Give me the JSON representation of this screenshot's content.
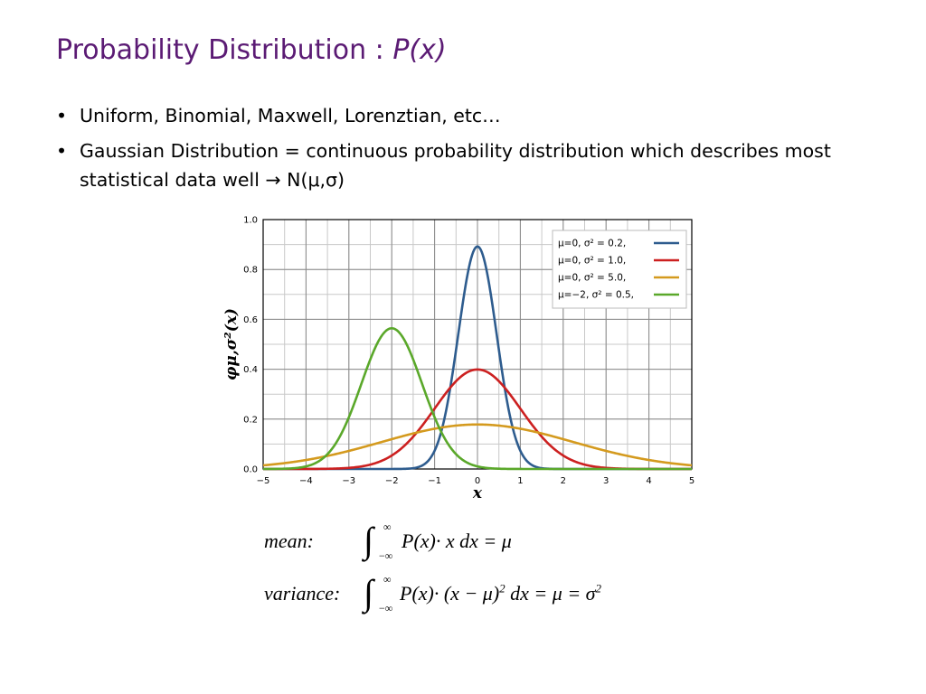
{
  "slide": {
    "title_main": "Probability Distribution : ",
    "title_italic": "P(x)",
    "bullets": [
      "Uniform, Binomial, Maxwell, Lorenztian, etc…",
      "Gaussian Distribution = continuous probability distribution which describes most statistical data well → N(μ,σ)"
    ]
  },
  "chart_data": {
    "type": "line",
    "xlabel": "x",
    "ylabel": "φμ,σ²(x)",
    "xlim": [
      -5,
      5
    ],
    "ylim": [
      0,
      1.0
    ],
    "xticks": [
      -5,
      -4,
      -3,
      -2,
      -1,
      0,
      1,
      2,
      3,
      4,
      5
    ],
    "yticks": [
      0.0,
      0.2,
      0.4,
      0.6,
      0.8,
      1.0
    ],
    "grid": true,
    "legend_position": "top-right",
    "series": [
      {
        "name": "μ=0,   σ² = 0.2,",
        "mu": 0,
        "variance": 0.2,
        "color": "#2e5c8e",
        "peak": 0.89
      },
      {
        "name": "μ=0,   σ² = 1.0,",
        "mu": 0,
        "variance": 1.0,
        "color": "#cc2020",
        "peak": 0.4
      },
      {
        "name": "μ=0,   σ² = 5.0,",
        "mu": 0,
        "variance": 5.0,
        "color": "#d49a1e",
        "peak": 0.18
      },
      {
        "name": "μ=−2,  σ² = 0.5,",
        "mu": -2,
        "variance": 0.5,
        "color": "#5aa82a",
        "peak": 0.56
      }
    ]
  },
  "formulas": {
    "mean_label": "mean:",
    "mean_expr": "P(x)· x dx = μ",
    "variance_label": "variance:",
    "variance_expr_a": "P(x)· (x − μ)",
    "variance_expr_b": " dx = μ = σ",
    "integral_sign": "∫",
    "upper_limit": "∞",
    "lower_limit": "−∞",
    "exponent": "2"
  }
}
